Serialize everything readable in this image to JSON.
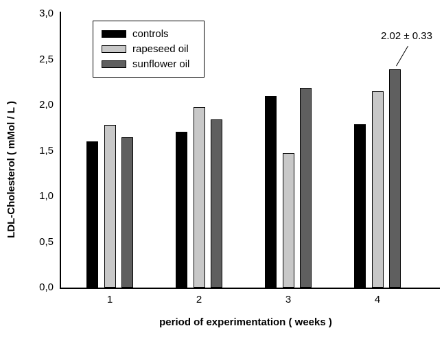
{
  "chart_data": {
    "type": "bar",
    "title": "",
    "xlabel": "period of experimentation ( weeks )",
    "ylabel": "LDL-Cholesterol ( mMol / L )",
    "categories": [
      "1",
      "2",
      "3",
      "4"
    ],
    "series": [
      {
        "name": "controls",
        "color": "#000000",
        "values": [
          1.6,
          1.71,
          2.1,
          1.79
        ]
      },
      {
        "name": "rapeseed oil",
        "color": "#c8c8c8",
        "values": [
          1.78,
          1.98,
          1.47,
          2.15
        ]
      },
      {
        "name": "sunflower oil",
        "color": "#5f5f5f",
        "values": [
          1.65,
          1.84,
          2.19,
          2.39
        ]
      }
    ],
    "ylim": [
      0.0,
      3.0
    ],
    "ytick_step": 0.5,
    "ytick_labels": [
      "0,0",
      "0,5",
      "1,0",
      "1,5",
      "2,0",
      "2,5",
      "3,0"
    ],
    "grid": false,
    "legend_position": "top-left-inside",
    "annotation": {
      "text": "2.02 ± 0.33",
      "target_series": "sunflower oil",
      "target_category": "4"
    }
  }
}
